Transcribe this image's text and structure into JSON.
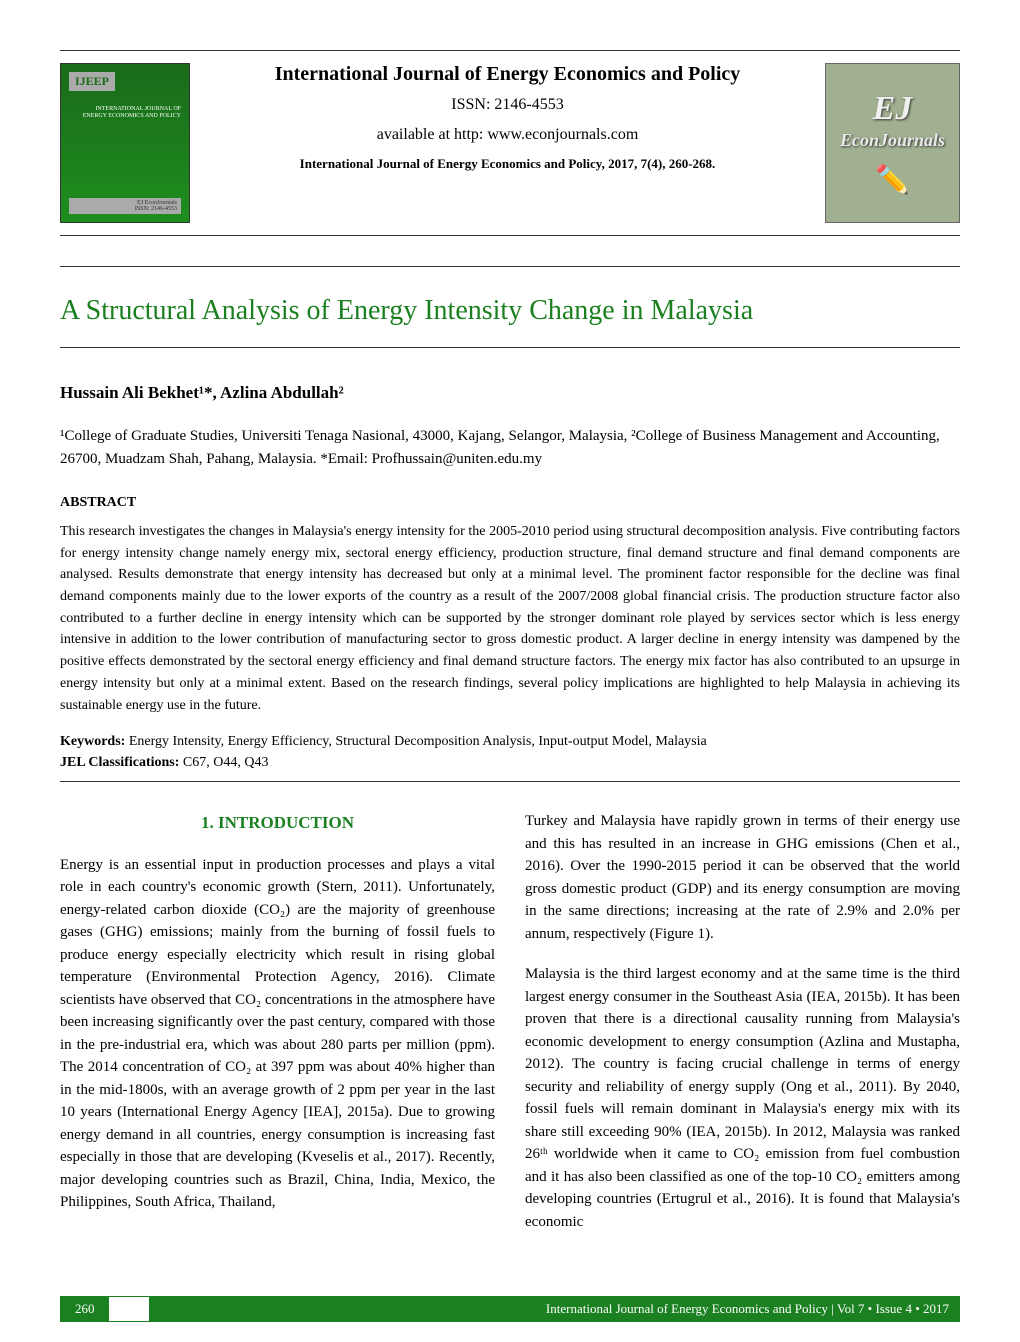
{
  "header": {
    "journal_title": "International Journal of Energy Economics and Policy",
    "issn": "ISSN: 2146-4553",
    "availability": "available at http: www.econjournals.com",
    "citation": "International Journal of Energy Economics and Policy, 2017, 7(4), 260-268.",
    "cover": {
      "abbrev": "IJEEP",
      "subtitle_line1": "INTERNATIONAL JOURNAL OF",
      "subtitle_line2": "ENERGY ECONOMICS AND POLICY",
      "footer": "EJ EconJournals",
      "issn_small": "ISSN: 2146-4553"
    },
    "ej_logo": {
      "top": "EJ",
      "bottom": "EconJournals"
    }
  },
  "article": {
    "title": "A Structural Analysis of Energy Intensity Change in Malaysia",
    "authors": "Hussain Ali Bekhet¹*, Azlina Abdullah²",
    "affiliations": "¹College of Graduate Studies, Universiti Tenaga Nasional, 43000, Kajang, Selangor, Malaysia, ²College of Business Management and Accounting, 26700, Muadzam Shah, Pahang, Malaysia. *Email: Profhussain@uniten.edu.my",
    "abstract_head": "ABSTRACT",
    "abstract": "This research investigates the changes in Malaysia's energy intensity for the 2005-2010 period using structural decomposition analysis. Five contributing factors for energy intensity change namely energy mix, sectoral energy efficiency, production structure, final demand structure and final demand components are analysed. Results demonstrate that energy intensity has decreased but only at a minimal level. The prominent factor responsible for the decline was final demand components mainly due to the lower exports of the country as a result of the 2007/2008 global financial crisis. The production structure factor also contributed to a further decline in energy intensity which can be supported by the stronger dominant role played by services sector which is less energy intensive in addition to the lower contribution of manufacturing sector to gross domestic product. A larger decline in energy intensity was dampened by the positive effects demonstrated by the sectoral energy efficiency and final demand structure factors. The energy mix factor has also contributed to an upsurge in energy intensity but only at a minimal extent. Based on the research findings, several policy implications are highlighted to help Malaysia in achieving its sustainable energy use in the future.",
    "keywords_label": "Keywords:",
    "keywords": " Energy Intensity, Energy Efficiency, Structural Decomposition Analysis, Input-output Model, Malaysia",
    "jel_label": "JEL Classifications:",
    "jel": " C67, O44, Q43"
  },
  "body": {
    "section_head": "1. INTRODUCTION",
    "left_para": "Energy is an essential input in production processes and plays a vital role in each country's economic growth (Stern, 2011). Unfortunately, energy-related carbon dioxide (CO₂) are the majority of greenhouse gases (GHG) emissions; mainly from the burning of fossil fuels to produce energy especially electricity which result in rising global temperature (Environmental Protection Agency, 2016). Climate scientists have observed that CO₂ concentrations in the atmosphere have been increasing significantly over the past century, compared with those in the pre-industrial era, which was about 280 parts per million (ppm). The 2014 concentration of CO₂ at 397 ppm was about 40% higher than in the mid-1800s, with an average growth of 2 ppm per year in the last 10 years (International Energy Agency [IEA], 2015a). Due to growing energy demand in all countries, energy consumption is increasing fast especially in those that are developing (Kveselis et al., 2017). Recently, major developing countries such as Brazil, China, India, Mexico, the Philippines, South Africa, Thailand,",
    "right_para1": "Turkey and Malaysia have rapidly grown in terms of their energy use and this has resulted in an increase in GHG emissions (Chen et al., 2016). Over the 1990-2015 period it can be observed that the world gross domestic product (GDP) and its energy consumption are moving in the same directions; increasing at the rate of 2.9% and 2.0% per annum, respectively (Figure 1).",
    "right_para2": "Malaysia is the third largest economy and at the same time is the third largest energy consumer in the Southeast Asia (IEA, 2015b). It has been proven that there is a directional causality running from Malaysia's economic development to energy consumption (Azlina and Mustapha, 2012). The country is facing crucial challenge in terms of energy security and reliability of energy supply (Ong et al., 2011). By 2040, fossil fuels will remain dominant in Malaysia's energy mix with its share still exceeding 90% (IEA, 2015b). In 2012, Malaysia was ranked 26ᵗʰ worldwide when it came to CO₂ emission from fuel combustion and it has also been classified as one of the top-10 CO₂ emitters among developing countries (Ertugrul et al., 2016). It is found that Malaysia's economic"
  },
  "footer": {
    "page_num": "260",
    "text": "International Journal of Energy Economics and Policy | Vol 7 • Issue 4 • 2017"
  },
  "colors": {
    "accent": "#1a8020",
    "cover_green": "#1e8e1e",
    "ej_bg": "#a0b090",
    "text": "#000000",
    "rule": "#333333"
  }
}
